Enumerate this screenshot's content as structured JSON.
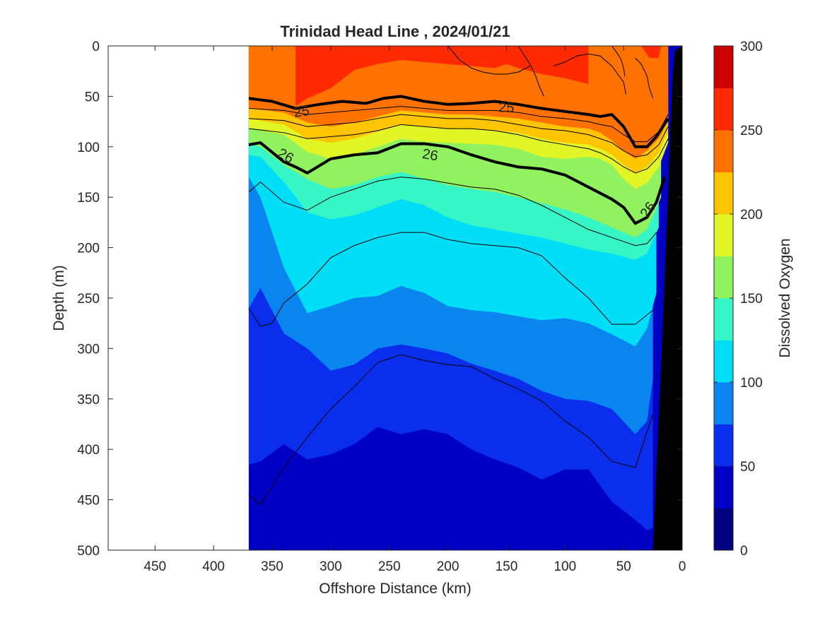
{
  "chart_data": {
    "type": "heatmap",
    "title": "Trinidad Head Line , 2024/01/21",
    "xlabel": "Offshore Distance (km)",
    "ylabel": "Depth (m)",
    "colorbar_label": "Dissolved Oxygen",
    "xlim": [
      490,
      0
    ],
    "ylim": [
      0,
      500
    ],
    "x_reversed": true,
    "y_reversed": true,
    "x_ticks": [
      450,
      400,
      350,
      300,
      250,
      200,
      150,
      100,
      50,
      0
    ],
    "y_ticks": [
      0,
      50,
      100,
      150,
      200,
      250,
      300,
      350,
      400,
      450,
      500
    ],
    "colorbar_ticks": [
      0,
      50,
      100,
      150,
      200,
      250,
      300
    ],
    "colorbar_range": [
      0,
      300
    ],
    "levels": [
      0,
      25,
      50,
      75,
      100,
      125,
      150,
      175,
      200,
      225,
      250,
      275,
      300
    ],
    "level_colors": [
      "#000080",
      "#0000C4",
      "#0A2EEB",
      "#0A85EF",
      "#00DDF7",
      "#36F5C6",
      "#90F25E",
      "#E2F526",
      "#FFC500",
      "#FF7200",
      "#FF2A00",
      "#CC0000"
    ],
    "data_extent_km": [
      370,
      0
    ],
    "oxygen_isolines": [
      {
        "level": 175,
        "x": [
          370,
          340,
          320,
          300,
          280,
          260,
          240,
          220,
          200,
          180,
          160,
          140,
          120,
          100,
          80,
          70,
          60,
          50,
          40,
          30,
          20,
          12
        ],
        "y": [
          82,
          88,
          105,
          112,
          108,
          100,
          92,
          95,
          96,
          97,
          98,
          102,
          110,
          112,
          110,
          112,
          118,
          132,
          142,
          136,
          120,
          96
        ]
      },
      {
        "level": 200,
        "x": [
          370,
          340,
          320,
          300,
          280,
          260,
          240,
          220,
          200,
          180,
          160,
          140,
          120,
          100,
          80,
          70,
          60,
          50,
          40,
          30,
          20,
          12
        ],
        "y": [
          72,
          78,
          92,
          96,
          92,
          85,
          78,
          80,
          82,
          82,
          84,
          86,
          92,
          96,
          98,
          102,
          108,
          118,
          126,
          120,
          106,
          84
        ]
      },
      {
        "level": 225,
        "x": [
          370,
          340,
          320,
          300,
          280,
          260,
          240,
          220,
          200,
          180,
          160,
          140,
          120,
          100,
          80,
          70,
          60,
          50,
          40,
          30,
          20,
          12
        ],
        "y": [
          62,
          66,
          76,
          80,
          76,
          70,
          64,
          66,
          68,
          68,
          70,
          72,
          76,
          80,
          82,
          86,
          94,
          104,
          112,
          104,
          92,
          74
        ]
      },
      {
        "level": 250,
        "x": [
          330,
          320,
          300,
          280,
          260,
          240,
          220,
          200,
          180,
          160,
          150,
          140,
          120,
          100,
          80
        ],
        "y": [
          60,
          52,
          42,
          24,
          18,
          14,
          16,
          18,
          20,
          22,
          18,
          22,
          28,
          32,
          38
        ]
      }
    ],
    "density_contours": [
      {
        "label": "25",
        "x": [
          370,
          350,
          330,
          310,
          290,
          270,
          255,
          240,
          220,
          200,
          180,
          160,
          140,
          120,
          100,
          80,
          70,
          60,
          50,
          40,
          30,
          22,
          12
        ],
        "y": [
          52,
          55,
          62,
          58,
          55,
          57,
          52,
          50,
          55,
          58,
          57,
          55,
          58,
          62,
          65,
          68,
          70,
          68,
          80,
          100,
          100,
          90,
          72
        ]
      },
      {
        "label": "26",
        "x": [
          370,
          360,
          340,
          330,
          320,
          300,
          280,
          260,
          240,
          220,
          200,
          180,
          160,
          140,
          120,
          100,
          80,
          60,
          50,
          40,
          30,
          22,
          15
        ],
        "y": [
          98,
          96,
          115,
          120,
          126,
          112,
          108,
          106,
          97,
          97,
          100,
          108,
          115,
          120,
          122,
          128,
          140,
          152,
          160,
          176,
          170,
          155,
          130
        ]
      }
    ],
    "thin_contours": [
      {
        "x": [
          370,
          340,
          320,
          300,
          280,
          260,
          240,
          220,
          200,
          180,
          160,
          140,
          120,
          100,
          80,
          70,
          60,
          50,
          40,
          30,
          20,
          12
        ],
        "y": [
          62,
          64,
          68,
          66,
          64,
          62,
          60,
          62,
          64,
          64,
          64,
          66,
          70,
          72,
          75,
          78,
          80,
          88,
          95,
          95,
          85,
          68
        ]
      },
      {
        "x": [
          370,
          340,
          320,
          300,
          280,
          260,
          240,
          220,
          200,
          180,
          160,
          140,
          120,
          100,
          80,
          70,
          60,
          50,
          40,
          30,
          20,
          12
        ],
        "y": [
          72,
          74,
          80,
          78,
          76,
          72,
          68,
          70,
          72,
          72,
          74,
          78,
          82,
          84,
          88,
          92,
          96,
          104,
          110,
          108,
          98,
          80
        ]
      },
      {
        "x": [
          370,
          340,
          320,
          300,
          280,
          260,
          240,
          220,
          200,
          180,
          160,
          140,
          120,
          100,
          80,
          70,
          60,
          50,
          40,
          30,
          20,
          12
        ],
        "y": [
          82,
          86,
          92,
          90,
          88,
          84,
          78,
          80,
          82,
          82,
          84,
          88,
          94,
          98,
          102,
          106,
          112,
          120,
          126,
          122,
          110,
          92
        ]
      },
      {
        "x": [
          370,
          360,
          340,
          320,
          300,
          280,
          260,
          240,
          220,
          200,
          180,
          160,
          140,
          120,
          100,
          80,
          60,
          40,
          30,
          22
        ],
        "y": [
          145,
          135,
          155,
          163,
          150,
          142,
          134,
          130,
          132,
          136,
          140,
          142,
          148,
          158,
          170,
          182,
          190,
          198,
          196,
          185
        ]
      },
      {
        "x": [
          370,
          360,
          350,
          340,
          320,
          300,
          280,
          260,
          240,
          220,
          200,
          180,
          160,
          140,
          120,
          100,
          80,
          60,
          40,
          25
        ],
        "y": [
          260,
          278,
          275,
          255,
          236,
          210,
          198,
          190,
          185,
          185,
          192,
          196,
          198,
          200,
          208,
          230,
          250,
          276,
          276,
          262
        ]
      },
      {
        "x": [
          370,
          360,
          340,
          320,
          300,
          280,
          260,
          240,
          220,
          200,
          180,
          160,
          140,
          120,
          100,
          80,
          60,
          40,
          25
        ],
        "y": [
          445,
          455,
          418,
          388,
          360,
          338,
          314,
          306,
          312,
          316,
          318,
          330,
          340,
          352,
          372,
          388,
          412,
          418,
          365
        ]
      }
    ],
    "do_contour_lines": [
      {
        "x": [
          200,
          190,
          180,
          170,
          160,
          150,
          140,
          130
        ],
        "y": [
          0,
          14,
          22,
          26,
          28,
          28,
          26,
          20
        ]
      },
      {
        "x": [
          140,
          130,
          125,
          122,
          118
        ],
        "y": [
          0,
          18,
          30,
          40,
          50
        ]
      },
      {
        "x": [
          110,
          100,
          90,
          80,
          70,
          60,
          55,
          50,
          48
        ],
        "y": [
          20,
          16,
          10,
          8,
          10,
          20,
          28,
          36,
          48
        ]
      },
      {
        "x": [
          60,
          55,
          52,
          50,
          49
        ],
        "y": [
          0,
          8,
          14,
          22,
          30
        ]
      },
      {
        "x": [
          40,
          35,
          30,
          28,
          25
        ],
        "y": [
          12,
          18,
          30,
          42,
          52
        ]
      }
    ],
    "seafloor": {
      "x": [
        25,
        22,
        18,
        15,
        12,
        10,
        8,
        6
      ],
      "y": [
        500,
        420,
        320,
        230,
        150,
        80,
        30,
        5
      ]
    }
  }
}
